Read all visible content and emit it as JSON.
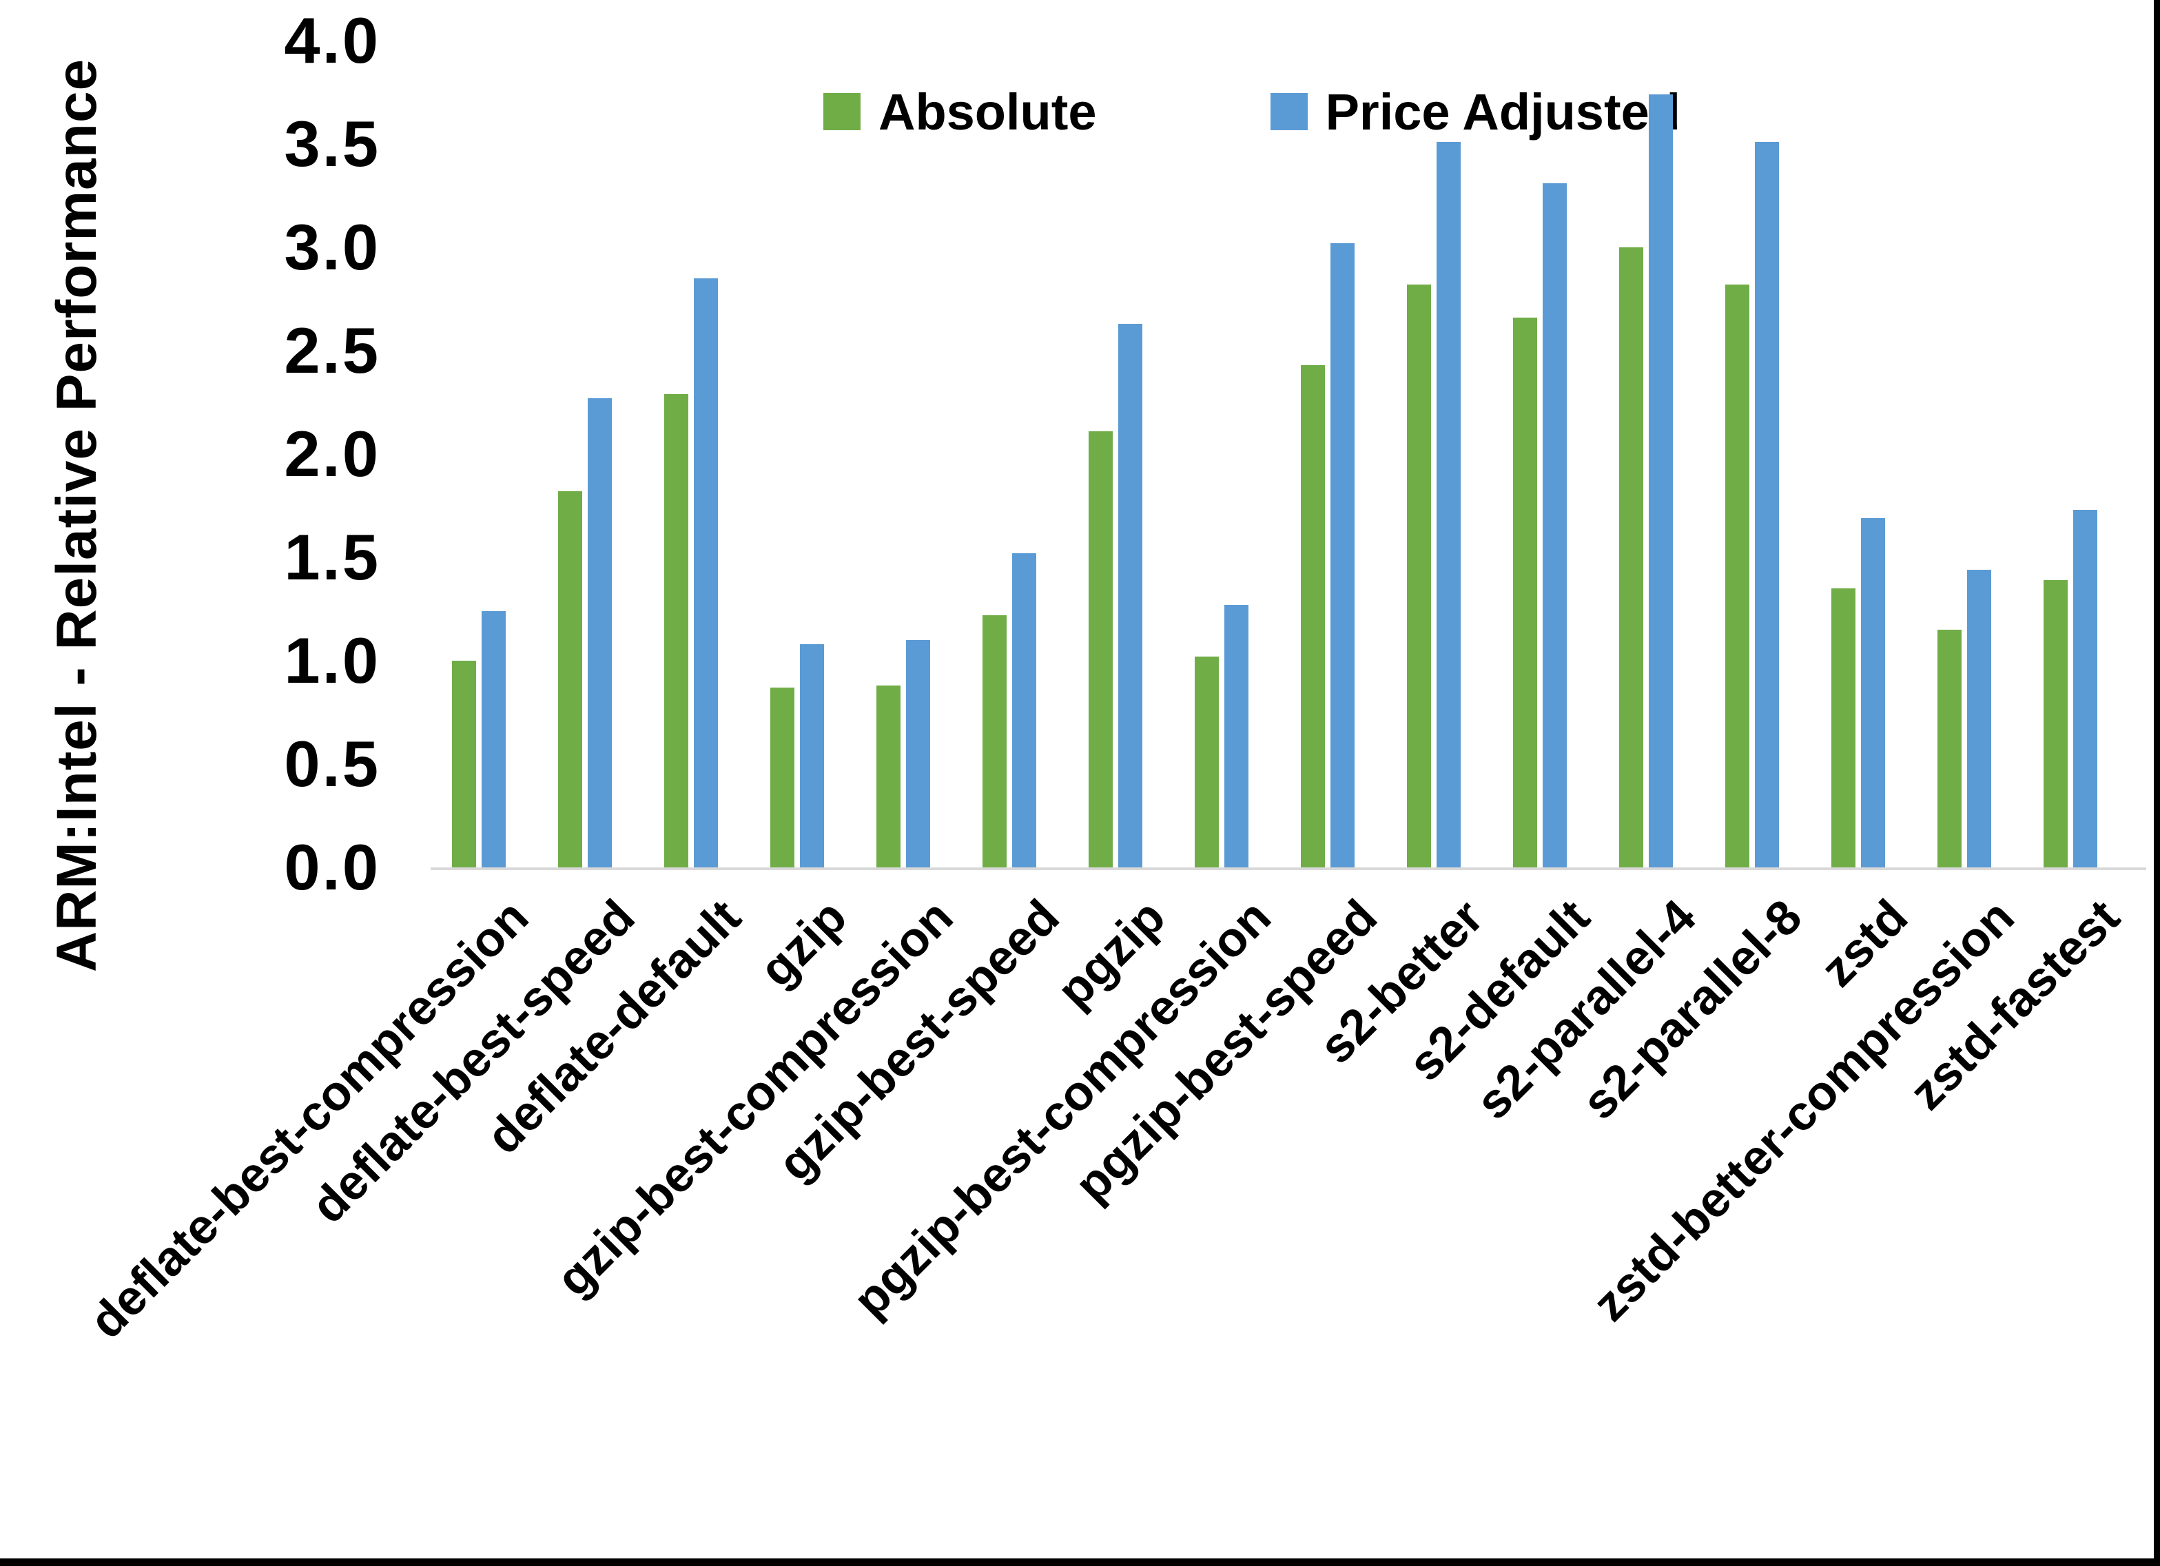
{
  "chart_data": {
    "type": "bar",
    "title": "",
    "xlabel": "",
    "ylabel": "ARM:Intel - Relative Performance",
    "ylim": [
      0.0,
      4.0
    ],
    "ytick_step": 0.5,
    "ytick_labels": [
      "0.0",
      "0.5",
      "1.0",
      "1.5",
      "2.0",
      "2.5",
      "3.0",
      "3.5",
      "4.0"
    ],
    "grid": false,
    "legend_position": "top-center",
    "categories": [
      "deflate-best-compression",
      "deflate-best-speed",
      "deflate-default",
      "gzip",
      "gzip-best-compression",
      "gzip-best-speed",
      "pgzip",
      "pgzip-best-compression",
      "pgzip-best-speed",
      "s2-better",
      "s2-default",
      "s2-parallel-4",
      "s2-parallel-8",
      "zstd",
      "zstd-better-compression",
      "zstd-fastest"
    ],
    "series": [
      {
        "name": "Absolute",
        "color": "#70AD47",
        "values": [
          1.0,
          1.82,
          2.29,
          0.87,
          0.88,
          1.22,
          2.11,
          1.02,
          2.43,
          2.82,
          2.66,
          3.0,
          2.82,
          1.35,
          1.15,
          1.39
        ]
      },
      {
        "name": "Price Adjusted",
        "color": "#5B9BD5",
        "values": [
          1.24,
          2.27,
          2.85,
          1.08,
          1.1,
          1.52,
          2.63,
          1.27,
          3.02,
          3.51,
          3.31,
          3.74,
          3.51,
          1.69,
          1.44,
          1.73
        ]
      }
    ]
  },
  "colors": {
    "background": "#FFFFFF",
    "axis_line": "#D9D9D9",
    "text": "#000000",
    "border": "#000000"
  }
}
